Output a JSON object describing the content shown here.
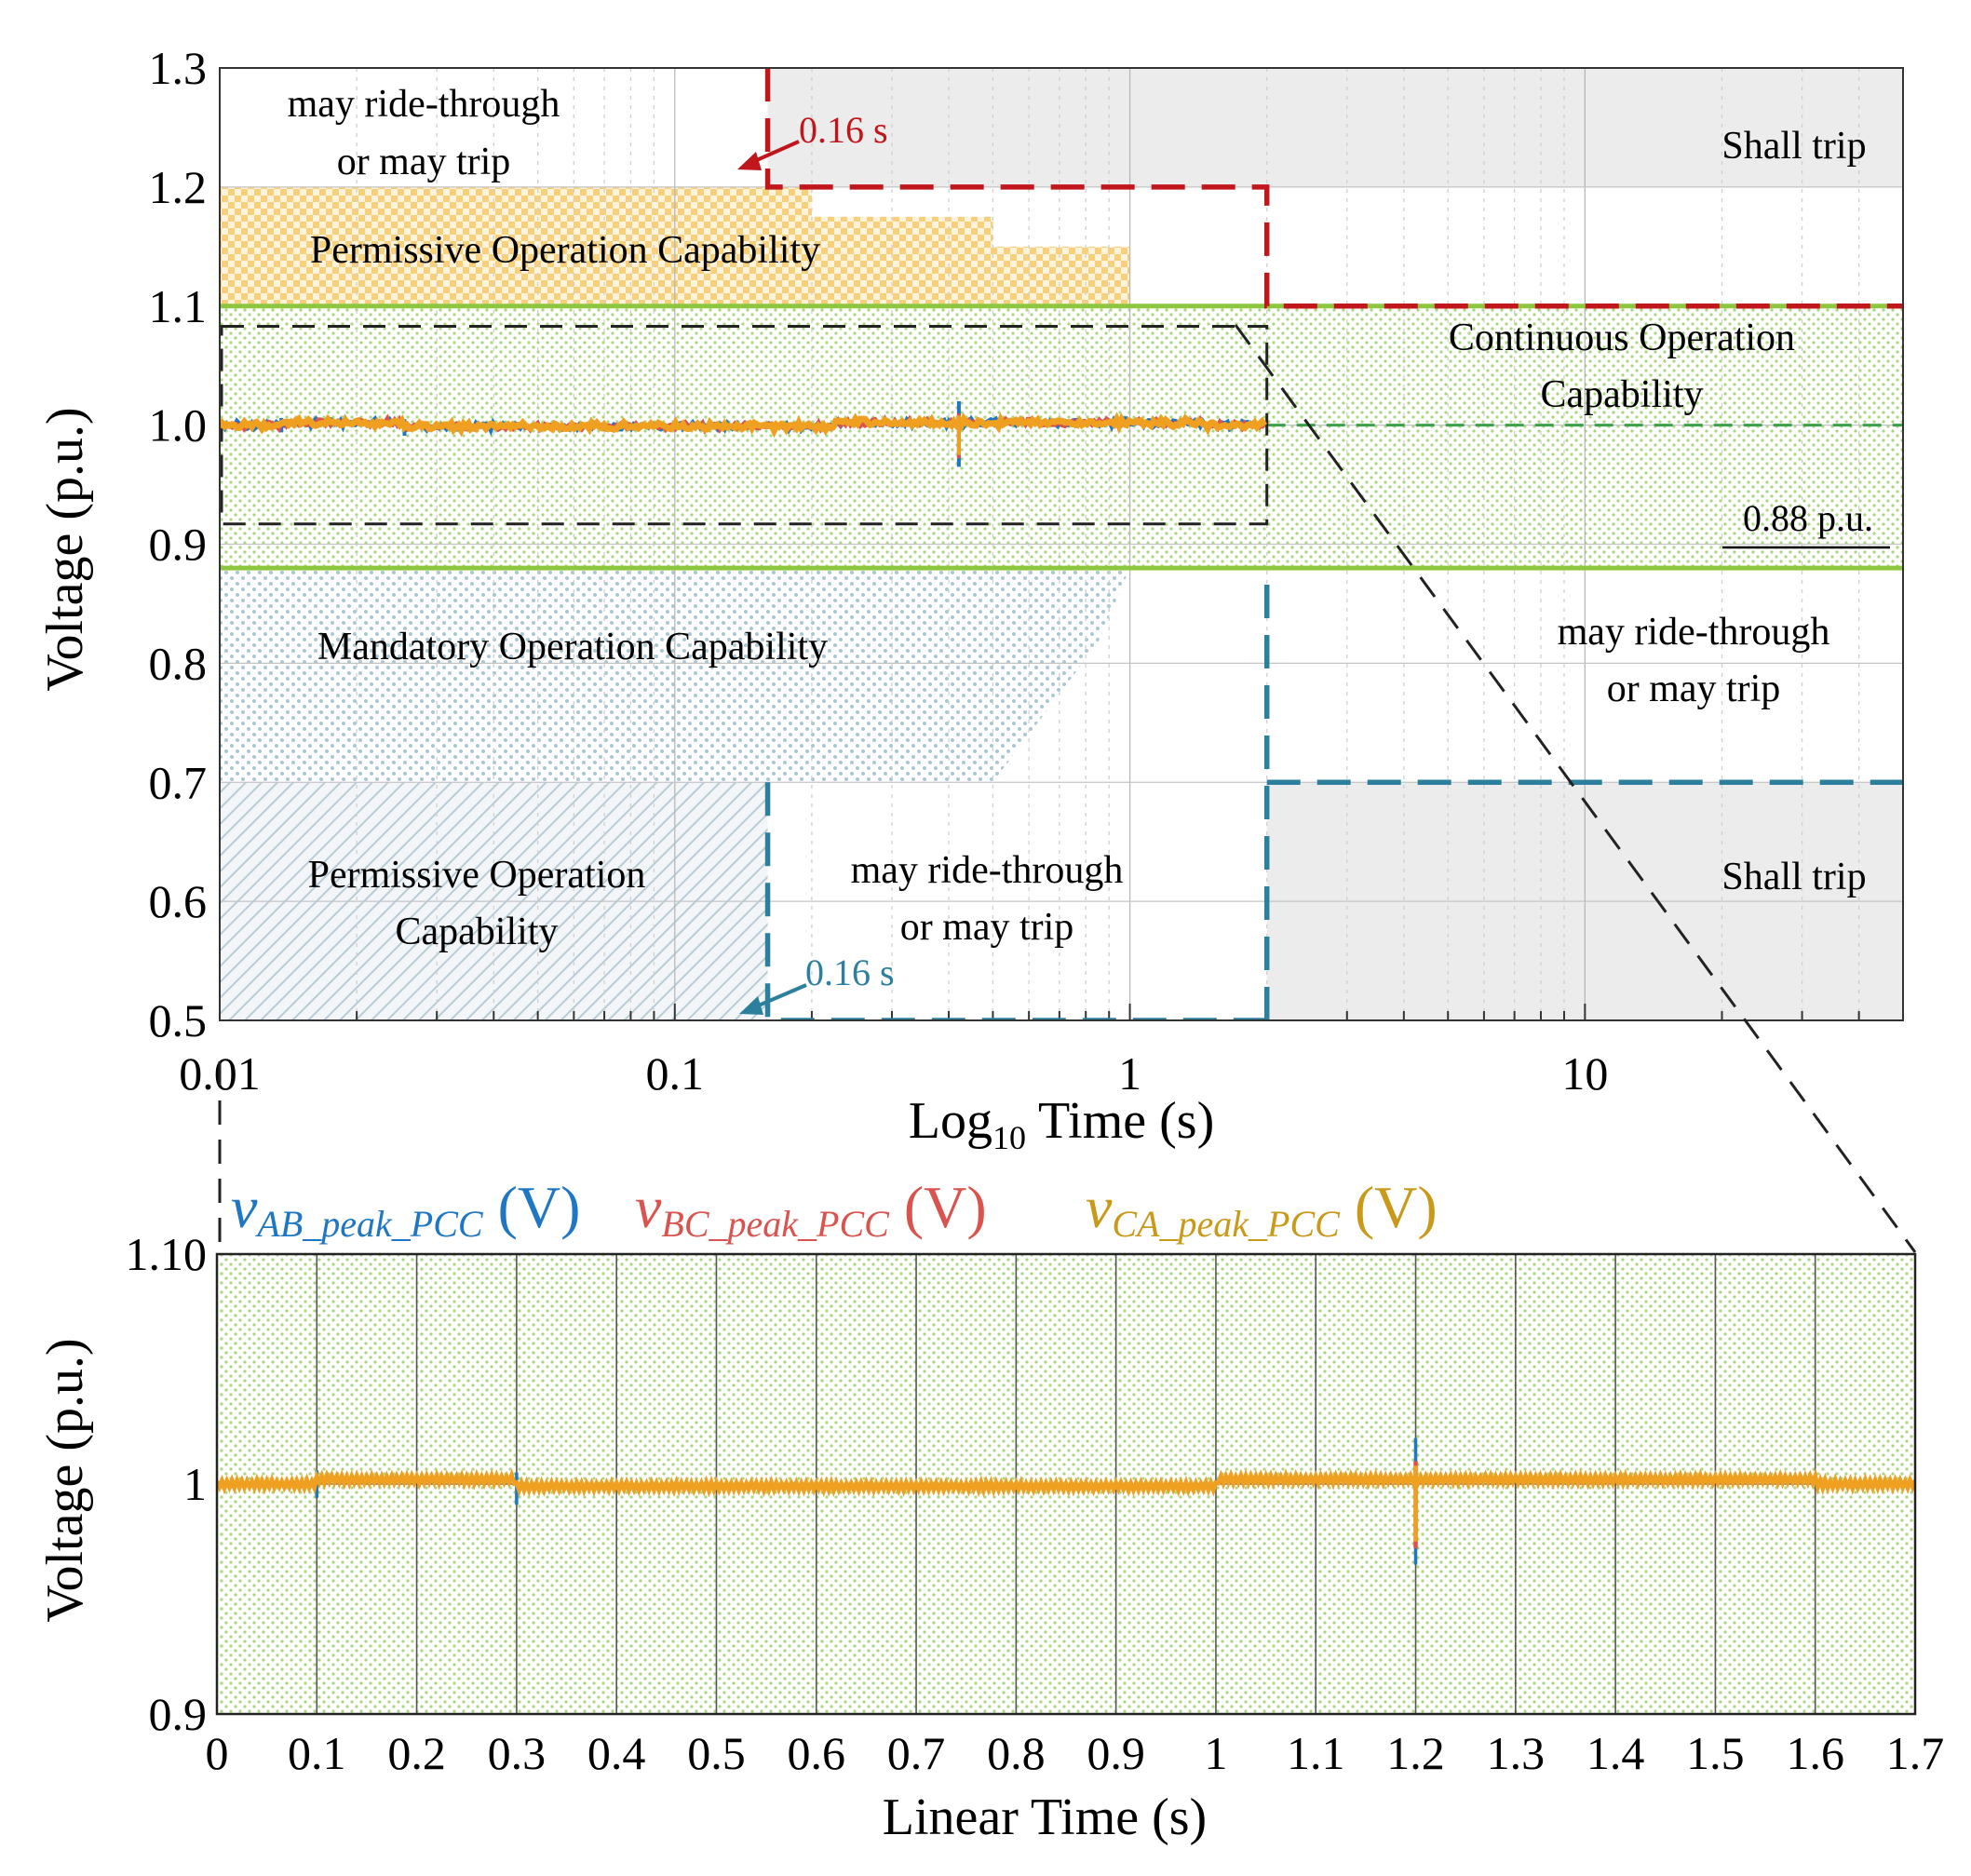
{
  "chart_data": [
    {
      "type": "line",
      "title": "",
      "xscale": "log10",
      "xlabel_main": "Log",
      "xlabel_sub": "10",
      "xlabel_tail": " Time (s)",
      "ylabel": "Voltage (p.u.)",
      "xlim": [
        0.01,
        50
      ],
      "ylim": [
        0.5,
        1.3
      ],
      "x_ticks": [
        {
          "value": 0.01,
          "label": "0.01"
        },
        {
          "value": 0.1,
          "label": "0.1"
        },
        {
          "value": 1,
          "label": "1"
        },
        {
          "value": 10,
          "label": "10"
        }
      ],
      "y_ticks": [
        {
          "value": 1.3,
          "label": "1.3"
        },
        {
          "value": 1.2,
          "label": "1.2"
        },
        {
          "value": 1.1,
          "label": "1.1"
        },
        {
          "value": 1.0,
          "label": "1.0"
        },
        {
          "value": 0.9,
          "label": "0.9"
        },
        {
          "value": 0.8,
          "label": "0.8"
        },
        {
          "value": 0.7,
          "label": "0.7"
        },
        {
          "value": 0.6,
          "label": "0.6"
        },
        {
          "value": 0.5,
          "label": "0.5"
        }
      ],
      "regions": {
        "permissive_high": {
          "label": "Permissive Operation Capability",
          "steps": [
            [
              0.01,
              0.2,
              1.2
            ],
            [
              0.2,
              0.5,
              1.175
            ],
            [
              0.5,
              1.0,
              1.15
            ],
            [
              0.01,
              1.0,
              1.1
            ]
          ]
        },
        "continuous": {
          "label_lines": [
            "Continuous Operation",
            "Capability"
          ],
          "x": [
            0.01,
            50
          ],
          "y": [
            0.88,
            1.1
          ]
        },
        "mandatory": {
          "label": "Mandatory Operation Capability",
          "x": [
            0.01,
            1.0
          ],
          "y": [
            0.7,
            0.88
          ]
        },
        "permissive_low": {
          "label_lines": [
            "Permissive Operation",
            "Capability"
          ],
          "x": [
            0.01,
            0.16
          ],
          "y": [
            0.5,
            0.7
          ]
        },
        "shall_trip_high": {
          "label": "Shall trip",
          "x": [
            0.16,
            50
          ],
          "y": [
            1.2,
            1.3
          ]
        },
        "shall_trip_low": {
          "label": "Shall trip",
          "x": [
            2.0,
            50
          ],
          "y": [
            0.5,
            0.7
          ]
        },
        "may_ride_top_left": {
          "label_lines": [
            "may ride-through",
            "or may trip"
          ]
        },
        "may_ride_right": {
          "label_lines": [
            "may ride-through",
            "or may trip"
          ]
        },
        "may_ride_low_mid": {
          "label_lines": [
            "may ride-through",
            "or may trip"
          ]
        }
      },
      "boundaries": {
        "overvoltage_trip": {
          "color": "#c0161c",
          "points": [
            [
              0.16,
              1.3
            ],
            [
              0.16,
              1.2
            ],
            [
              2.0,
              1.2
            ],
            [
              2.0,
              1.1
            ],
            [
              50,
              1.1
            ]
          ]
        },
        "undervoltage_trip": {
          "color": "#2d7f9e",
          "points": [
            [
              0.16,
              0.7
            ],
            [
              0.16,
              0.5
            ],
            [
              2.0,
              0.5
            ],
            [
              2.0,
              0.88
            ],
            [
              2.0,
              0.7
            ],
            [
              50,
              0.7
            ]
          ]
        },
        "zoom_box": {
          "x": [
            0.01,
            2.0
          ],
          "y": [
            0.917,
            1.083
          ]
        },
        "nominal_dashed": {
          "y": 1.0,
          "x": [
            2.0,
            50
          ]
        }
      },
      "annotations": {
        "red_time_label": "0.16 s",
        "blue_time_label": "0.16 s",
        "pu_label": "0.88 p.u."
      },
      "series": [
        {
          "name": "vAB_peak_PCC",
          "color": "#1f77c4"
        },
        {
          "name": "vBC_peak_PCC",
          "color": "#d9534f"
        },
        {
          "name": "vCA_peak_PCC",
          "color": "#f0a020"
        }
      ]
    },
    {
      "type": "line",
      "title": "",
      "xlabel": "Linear Time (s)",
      "ylabel": "Voltage (p.u.)",
      "xlim": [
        0,
        1.7
      ],
      "ylim": [
        0.9,
        1.1
      ],
      "x_ticks": [
        {
          "value": 0,
          "label": "0"
        },
        {
          "value": 0.1,
          "label": "0.1"
        },
        {
          "value": 0.2,
          "label": "0.2"
        },
        {
          "value": 0.3,
          "label": "0.3"
        },
        {
          "value": 0.4,
          "label": "0.4"
        },
        {
          "value": 0.5,
          "label": "0.5"
        },
        {
          "value": 0.6,
          "label": "0.6"
        },
        {
          "value": 0.7,
          "label": "0.7"
        },
        {
          "value": 0.8,
          "label": "0.8"
        },
        {
          "value": 0.9,
          "label": "0.9"
        },
        {
          "value": 1.0,
          "label": "1"
        },
        {
          "value": 1.1,
          "label": "1.1"
        },
        {
          "value": 1.2,
          "label": "1.2"
        },
        {
          "value": 1.3,
          "label": "1.3"
        },
        {
          "value": 1.4,
          "label": "1.4"
        },
        {
          "value": 1.5,
          "label": "1.5"
        },
        {
          "value": 1.6,
          "label": "1.6"
        },
        {
          "value": 1.7,
          "label": "1.7"
        }
      ],
      "y_ticks": [
        {
          "value": 1.1,
          "label": "1.10"
        },
        {
          "value": 1.0,
          "label": "1"
        },
        {
          "value": 0.9,
          "label": "0.9"
        }
      ],
      "legend": [
        {
          "main": "v",
          "sub": "AB_peak_PCC",
          "unit": " (V)",
          "color": "#1f77c4"
        },
        {
          "main": "v",
          "sub": "BC_peak_PCC",
          "unit": " (V)",
          "color": "#d9534f"
        },
        {
          "main": "v",
          "sub": "CA_peak_PCC",
          "unit": " (V)",
          "color": "#c99a1a"
        }
      ],
      "series": [
        {
          "name": "vAB_peak_PCC",
          "color": "#1f77c4",
          "segments": [
            [
              0,
              0.1,
              1.0
            ],
            [
              0.1,
              0.3,
              1.002
            ],
            [
              0.3,
              1.0,
              0.999
            ],
            [
              1.0,
              1.6,
              1.002
            ],
            [
              1.6,
              1.7,
              1.0
            ]
          ],
          "spikes": [
            [
              0.1,
              1.006,
              0.994
            ],
            [
              0.3,
              1.005,
              0.991
            ],
            [
              1.2,
              1.02,
              0.965
            ]
          ]
        },
        {
          "name": "vBC_peak_PCC",
          "color": "#d9534f",
          "segments": [
            [
              0,
              0.1,
              1.0
            ],
            [
              0.1,
              0.3,
              1.002
            ],
            [
              0.3,
              1.0,
              0.999
            ],
            [
              1.0,
              1.6,
              1.002
            ],
            [
              1.6,
              1.7,
              1.0
            ]
          ],
          "spikes": [
            [
              1.2,
              1.01,
              0.972
            ]
          ]
        },
        {
          "name": "vCA_peak_PCC",
          "color": "#f0a020",
          "segments": [
            [
              0,
              0.1,
              1.0
            ],
            [
              0.1,
              0.3,
              1.002
            ],
            [
              0.3,
              1.0,
              0.999
            ],
            [
              1.0,
              1.6,
              1.002
            ],
            [
              1.6,
              1.7,
              1.0
            ]
          ],
          "spikes": [
            [
              1.2,
              1.008,
              0.975
            ]
          ]
        }
      ]
    }
  ]
}
